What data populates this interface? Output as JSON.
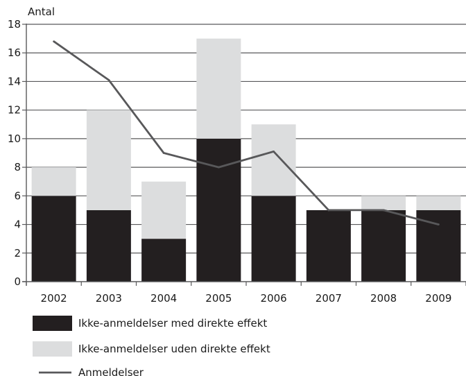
{
  "chart_data": {
    "type": "bar",
    "stacked": true,
    "ylabel": "Antal",
    "ylim": [
      0,
      18
    ],
    "yticks": [
      0,
      2,
      4,
      6,
      8,
      10,
      12,
      14,
      16,
      18
    ],
    "grid": true,
    "legend_position": "bottom-left",
    "categories": [
      "2002",
      "2003",
      "2004",
      "2005",
      "2006",
      "2007",
      "2008",
      "2009"
    ],
    "series": [
      {
        "name": "Ikke-anmeldelser med direkte effekt",
        "kind": "bar",
        "color": "#231f20",
        "values": [
          6,
          5,
          3,
          10,
          6,
          5,
          5,
          5
        ]
      },
      {
        "name": "Ikke-anmeldelser uden direkte effekt",
        "kind": "bar",
        "color": "#dcddde",
        "values": [
          2,
          7,
          4,
          7,
          5,
          0,
          1,
          1
        ]
      },
      {
        "name": "Anmeldelser",
        "kind": "line",
        "color": "#58585a",
        "values": [
          16.8,
          14.1,
          9,
          8,
          9.1,
          5,
          5,
          4
        ]
      }
    ]
  }
}
